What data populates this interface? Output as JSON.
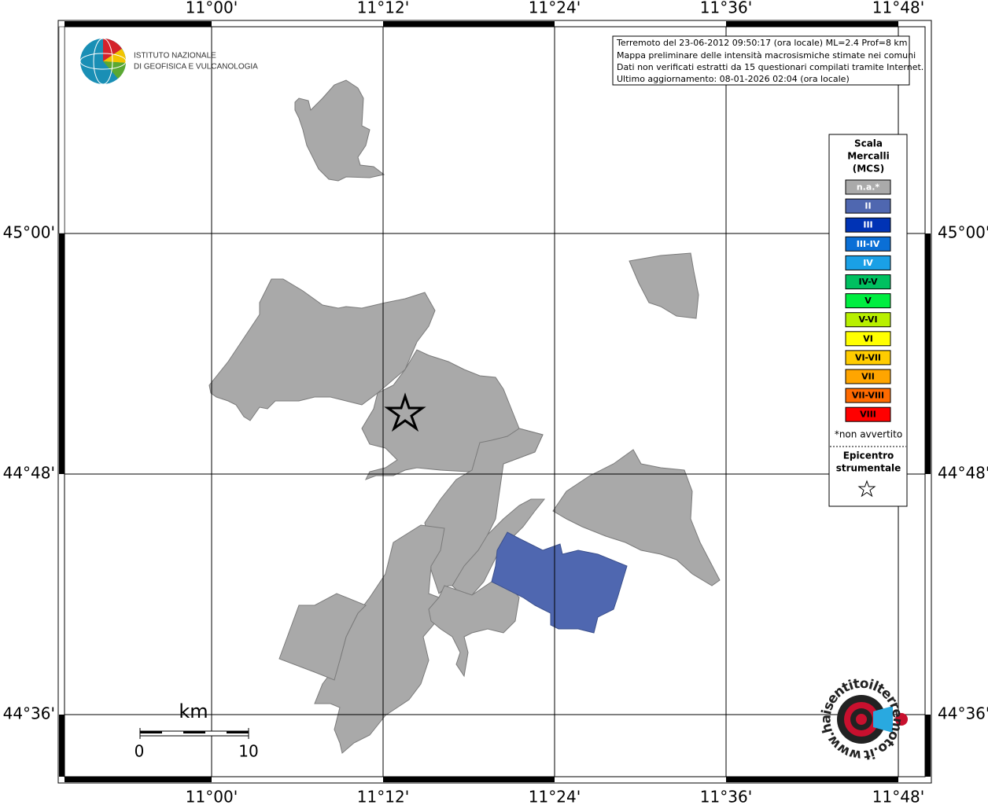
{
  "map": {
    "lon_labels": [
      "11°00'",
      "11°12'",
      "11°24'",
      "11°36'",
      "11°48'"
    ],
    "lat_labels": [
      "45°00'",
      "44°48'",
      "44°36'"
    ],
    "info": [
      "Terremoto del 23-06-2012 09:50:17 (ora locale) ML=2.4 Prof=8 km",
      "Mappa preliminare delle intensità macrosismiche stimate nei comuni",
      "Dati non verificati estratti da 15 questionari compilati tramite Internet.",
      "Ultimo aggiornamento: 08-01-2026 02:04 (ora locale)"
    ],
    "institute": [
      "ISTITUTO NAZIONALE",
      "DI GEOFISICA E VULCANOLOGIA"
    ],
    "legend": {
      "title": [
        "Scala",
        "Mercalli",
        "(MCS)"
      ],
      "items": [
        {
          "label": "n.a.*",
          "color": "#aaaaaa",
          "text_color": "#ffffff"
        },
        {
          "label": "II",
          "color": "#4f67b0",
          "text_color": "#ffffff"
        },
        {
          "label": "III",
          "color": "#0033b5",
          "text_color": "#ffffff"
        },
        {
          "label": "III-IV",
          "color": "#0a6fd6",
          "text_color": "#ffffff"
        },
        {
          "label": "IV",
          "color": "#1aa0e6",
          "text_color": "#ffffff"
        },
        {
          "label": "IV-V",
          "color": "#00c060",
          "text_color": "#000000"
        },
        {
          "label": "V",
          "color": "#00ee40",
          "text_color": "#000000"
        },
        {
          "label": "V-VI",
          "color": "#b8f000",
          "text_color": "#000000"
        },
        {
          "label": "VI",
          "color": "#ffff00",
          "text_color": "#000000"
        },
        {
          "label": "VI-VII",
          "color": "#ffcc00",
          "text_color": "#000000"
        },
        {
          "label": "VII",
          "color": "#ffa500",
          "text_color": "#000000"
        },
        {
          "label": "VII-VIII",
          "color": "#ff6a00",
          "text_color": "#000000"
        },
        {
          "label": "VIII",
          "color": "#ff0000",
          "text_color": "#000000"
        }
      ],
      "note": "*non avvertito",
      "epicenter": [
        "Epicentro",
        "strumentale"
      ]
    },
    "scale": {
      "unit": "km",
      "labels": [
        "0",
        "10"
      ]
    },
    "site": "www.haisentitoilterremoto.it"
  }
}
